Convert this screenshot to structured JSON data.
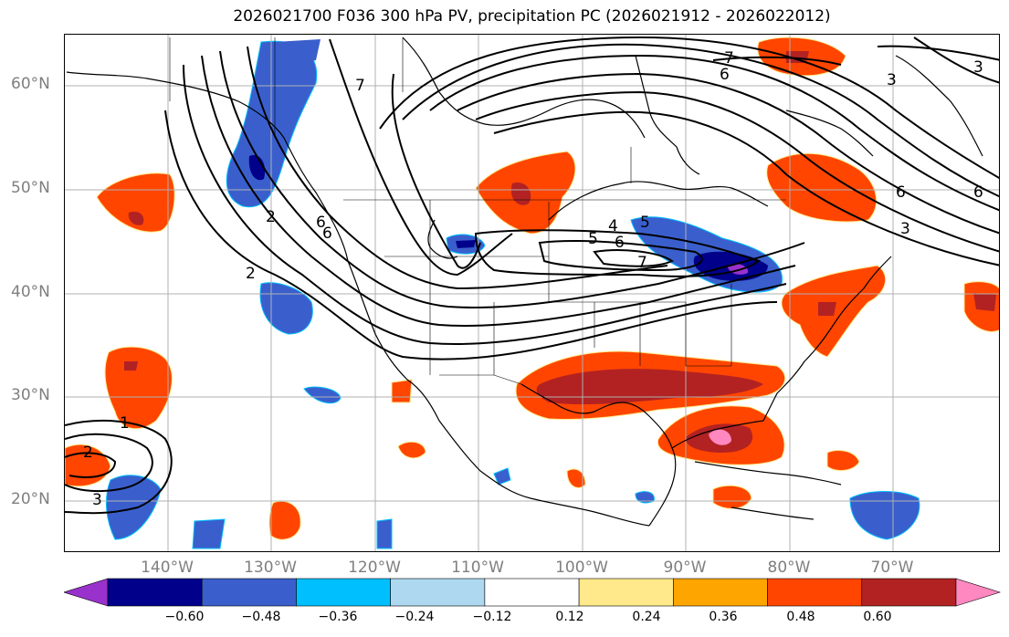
{
  "title": "2026021700 F036 300 hPa PV, precipitation PC (2026021912 - 2026022012)",
  "lat_labels": [
    "60°N",
    "50°N",
    "40°N",
    "30°N",
    "20°N"
  ],
  "lon_labels": [
    "140°W",
    "130°W",
    "120°W",
    "110°W",
    "100°W",
    "90°W",
    "80°W",
    "70°W"
  ],
  "colorbar": {
    "ticks": [
      "−0.60",
      "−0.48",
      "−0.36",
      "−0.24",
      "−0.12",
      "0.12",
      "0.24",
      "0.36",
      "0.48",
      "0.60"
    ],
    "colors": [
      "#9932CC",
      "#00008B",
      "#3A5FCD",
      "#00BFFF",
      "#ADD8F0",
      "#FFFFFF",
      "#FFE98A",
      "#FFA500",
      "#FF4500",
      "#B22222",
      "#FF88C0"
    ]
  },
  "contour_labels": [
    "7",
    "6",
    "6",
    "6",
    "5",
    "4",
    "6",
    "5",
    "7",
    "2",
    "2",
    "2",
    "3",
    "7",
    "6",
    "3",
    "3",
    "6",
    "3",
    "1"
  ]
}
